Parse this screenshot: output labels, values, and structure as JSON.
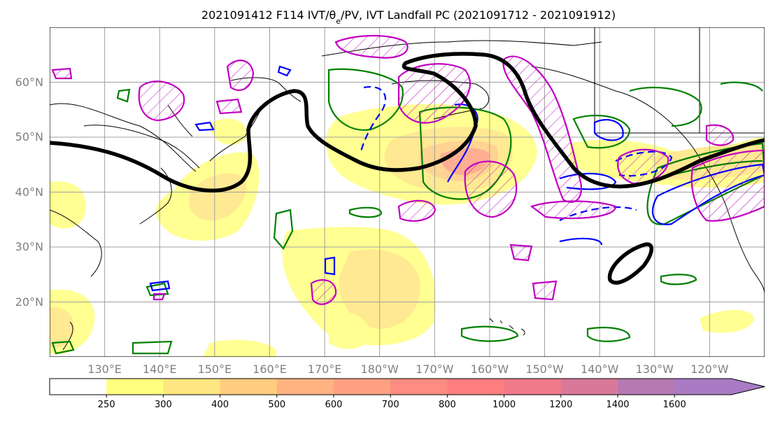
{
  "title": "2021091412 F114 IVT/θ",
  "title_sub": "e",
  "title_rest": "/PV, IVT Landfall PC (2021091712 - 2021091912)",
  "lat_labels": [
    "60°N",
    "50°N",
    "40°N",
    "30°N",
    "20°N"
  ],
  "lon_labels": [
    "130°E",
    "140°E",
    "150°E",
    "160°E",
    "170°E",
    "180°W",
    "170°W",
    "160°W",
    "150°W",
    "140°W",
    "130°W",
    "120°W"
  ],
  "colorbar": {
    "ticks": [
      "250",
      "300",
      "400",
      "500",
      "600",
      "700",
      "800",
      "1000",
      "1200",
      "1400",
      "1600"
    ],
    "colors": [
      "#ffffff",
      "#ffff80",
      "#ffe680",
      "#ffcc80",
      "#ffb380",
      "#ffa080",
      "#ff8c80",
      "#ff7f80",
      "#f07a8a",
      "#d9799a",
      "#b679b2",
      "#a87bc4"
    ]
  },
  "colors": {
    "green_contour": "#008000",
    "blue_contour": "#0000ff",
    "magenta_contour": "#c000c0",
    "pv_line": "#000000",
    "grid": "#a0a0a0",
    "coast": "#000000"
  },
  "chart_data": {
    "type": "map",
    "projection": "PlateCarree",
    "lon_range": [
      "120°E",
      "130°W"
    ],
    "lat_range": [
      "10°N",
      "70°N"
    ],
    "fields": [
      {
        "name": "IVT",
        "type": "filled-contour",
        "units_levels": [
          250,
          300,
          400,
          500,
          600,
          700,
          800,
          1000,
          1200,
          1400,
          1600
        ]
      },
      {
        "name": "θe",
        "type": "contour",
        "color": "green / blue"
      },
      {
        "name": "PV",
        "type": "contour",
        "color": "magenta, hatched"
      },
      {
        "name": "dynamic tropopause",
        "type": "thick line",
        "color": "black"
      }
    ],
    "grid": true
  }
}
